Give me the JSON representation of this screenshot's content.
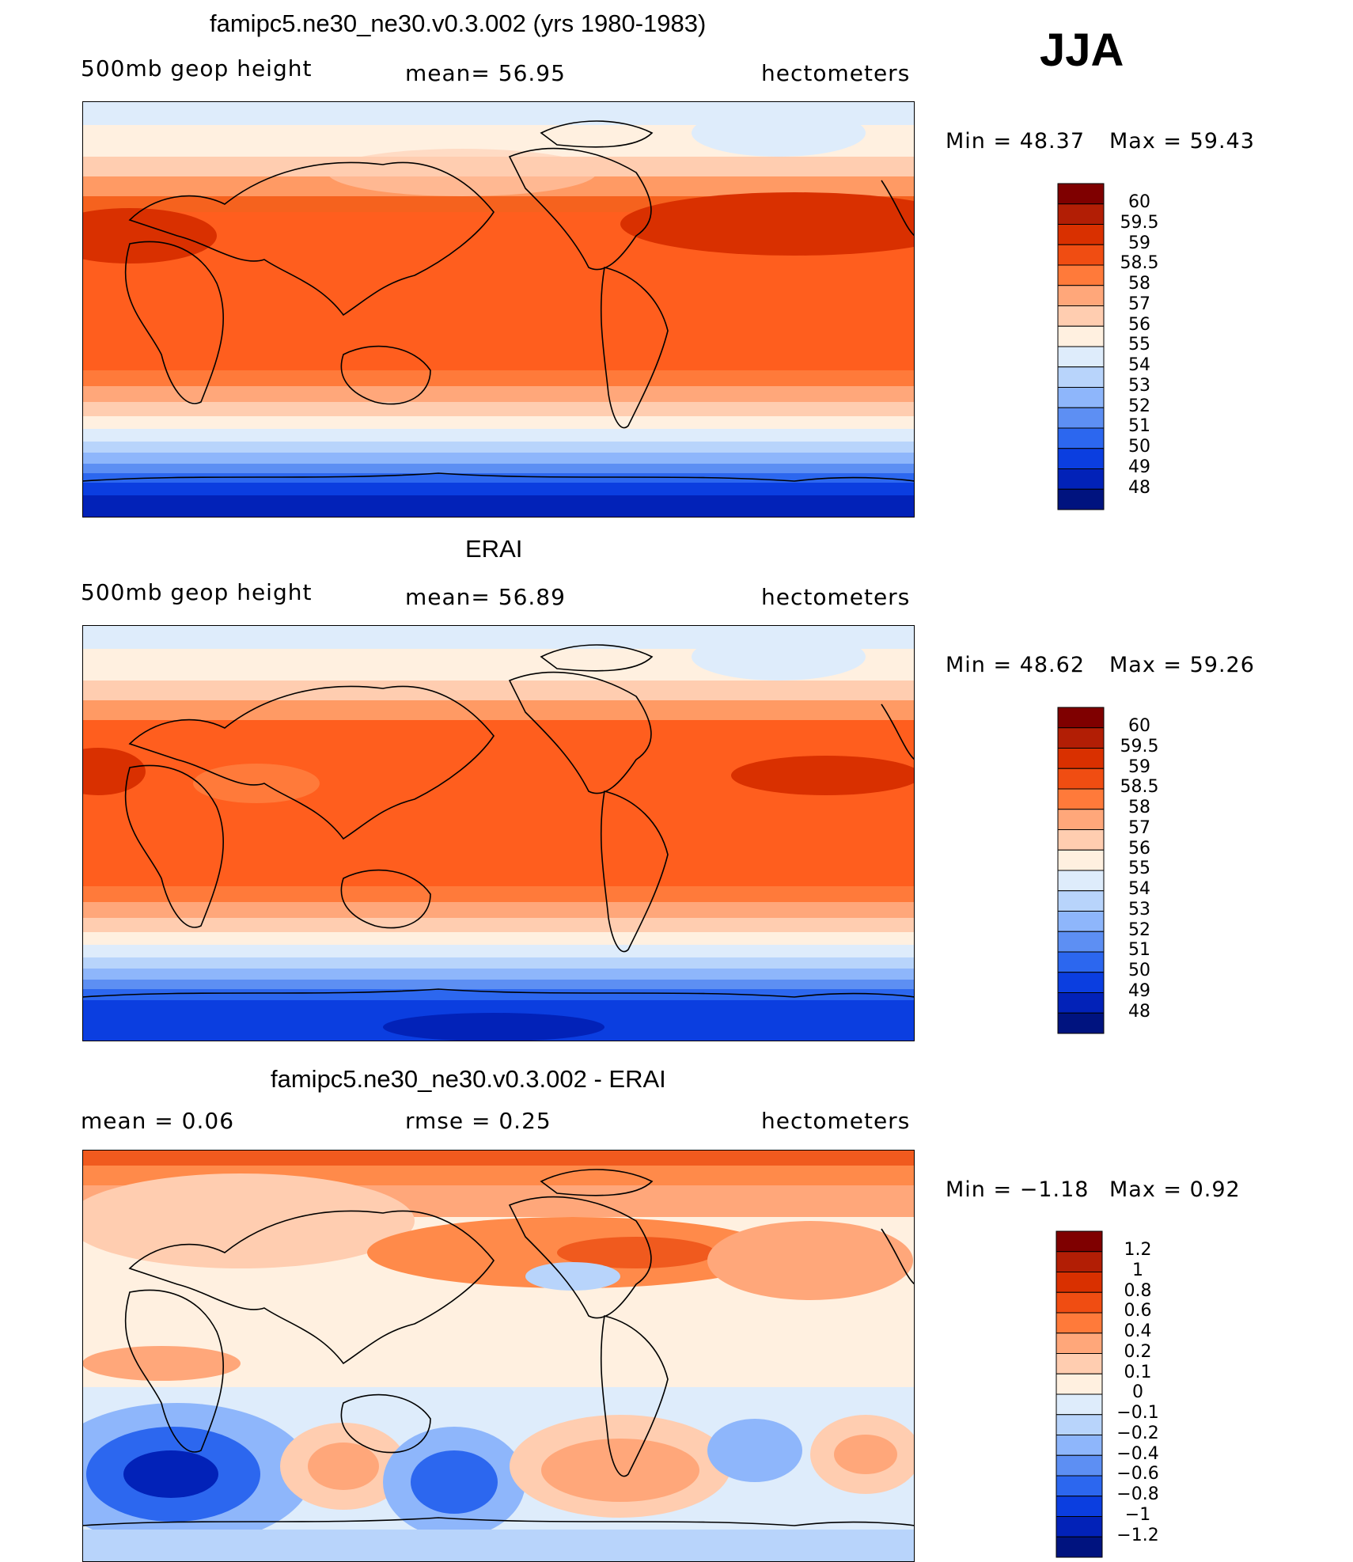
{
  "season": "JJA",
  "chart_data": [
    {
      "type": "heatmap",
      "title": "famipc5.ne30_ne30.v0.3.002 (yrs 1980-1983)",
      "left_label": "500mb  geop  height",
      "center_label": "mean=   56.95",
      "right_label": "hectometers",
      "min_label": "Min =   48.37",
      "max_label": "Max =   59.43",
      "min": 48.37,
      "max": 59.43,
      "mean": 56.95,
      "levels": [
        "60",
        "59.5",
        "59",
        "58.5",
        "58",
        "57",
        "56",
        "55",
        "54",
        "53",
        "52",
        "51",
        "50",
        "49",
        "48"
      ],
      "colors": [
        "#7f0000",
        "#b21e05",
        "#d93000",
        "#f04d12",
        "#ff7a3a",
        "#ffa77a",
        "#ffcdb0",
        "#fff0e0",
        "#deecfb",
        "#b8d4fb",
        "#8eb6fb",
        "#5d8ff3",
        "#2c67ef",
        "#0b3ee0",
        "#0222b8",
        "#00137f"
      ]
    },
    {
      "type": "heatmap",
      "title": "ERAI",
      "left_label": "500mb  geop  height",
      "center_label": "mean=   56.89",
      "right_label": "hectometers",
      "min_label": "Min =   48.62",
      "max_label": "Max =   59.26",
      "min": 48.62,
      "max": 59.26,
      "mean": 56.89,
      "levels": [
        "60",
        "59.5",
        "59",
        "58.5",
        "58",
        "57",
        "56",
        "55",
        "54",
        "53",
        "52",
        "51",
        "50",
        "49",
        "48"
      ],
      "colors": [
        "#7f0000",
        "#b21e05",
        "#d93000",
        "#f04d12",
        "#ff7a3a",
        "#ffa77a",
        "#ffcdb0",
        "#fff0e0",
        "#deecfb",
        "#b8d4fb",
        "#8eb6fb",
        "#5d8ff3",
        "#2c67ef",
        "#0b3ee0",
        "#0222b8",
        "#00137f"
      ]
    },
    {
      "type": "heatmap",
      "title": "famipc5.ne30_ne30.v0.3.002 - ERAI",
      "left_label": "mean =     0.06",
      "center_label": "rmse =     0.25",
      "right_label": "hectometers",
      "min_label": "Min =   −1.18",
      "max_label": "Max =     0.92",
      "min": -1.18,
      "max": 0.92,
      "mean": 0.06,
      "rmse": 0.25,
      "levels": [
        "1.2",
        "1",
        "0.8",
        "0.6",
        "0.4",
        "0.2",
        "0.1",
        "0",
        "−0.1",
        "−0.2",
        "−0.4",
        "−0.6",
        "−0.8",
        "−1",
        "−1.2"
      ],
      "colors": [
        "#7f0000",
        "#b21e05",
        "#d93000",
        "#f04d12",
        "#ff7a3a",
        "#ffa77a",
        "#ffcdb0",
        "#fff0e0",
        "#deecfb",
        "#b8d4fb",
        "#8eb6fb",
        "#5d8ff3",
        "#2c67ef",
        "#0b3ee0",
        "#0222b8",
        "#00137f"
      ]
    }
  ]
}
